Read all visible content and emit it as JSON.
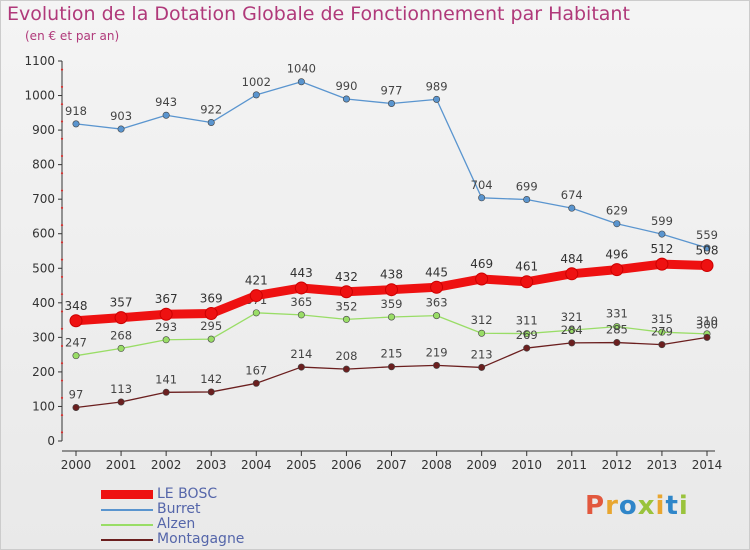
{
  "title": "Evolution de la Dotation Globale de Fonctionnement par Habitant",
  "subtitle": "(en € et par an)",
  "logo": {
    "text": "Proxiti",
    "colors": [
      "#e2583e",
      "#e8a630",
      "#2f86c9",
      "#9ac33c",
      "#e8a630",
      "#2f86c9",
      "#9ac33c"
    ]
  },
  "chart_data": {
    "type": "line",
    "title": "Evolution de la Dotation Globale de Fonctionnement par Habitant",
    "subtitle": "(en € et par an)",
    "x": [
      "2000",
      "2001",
      "2002",
      "2003",
      "2004",
      "2005",
      "2006",
      "2007",
      "2008",
      "2009",
      "2010",
      "2011",
      "2012",
      "2013",
      "2014"
    ],
    "ylim": [
      0,
      1100
    ],
    "yticks": [
      0,
      100,
      200,
      300,
      400,
      500,
      600,
      700,
      800,
      900,
      1000,
      1100
    ],
    "grid": false,
    "legend_position": "bottom-left",
    "series": [
      {
        "name": "LE BOSC",
        "color": "#ee1111",
        "values": [
          348,
          357,
          367,
          369,
          421,
          443,
          432,
          438,
          445,
          469,
          461,
          484,
          496,
          512,
          508
        ]
      },
      {
        "name": "Burret",
        "color": "#5a95cf",
        "values": [
          918,
          903,
          943,
          922,
          1002,
          1040,
          990,
          977,
          989,
          704,
          699,
          674,
          629,
          599,
          559
        ]
      },
      {
        "name": "Alzen",
        "color": "#99dd66",
        "values": [
          247,
          268,
          293,
          295,
          371,
          365,
          352,
          359,
          363,
          312,
          311,
          321,
          331,
          315,
          310
        ]
      },
      {
        "name": "Montagagne",
        "color": "#6b1f1f",
        "values": [
          97,
          113,
          141,
          142,
          167,
          214,
          208,
          215,
          219,
          213,
          269,
          284,
          285,
          279,
          300
        ]
      }
    ]
  }
}
